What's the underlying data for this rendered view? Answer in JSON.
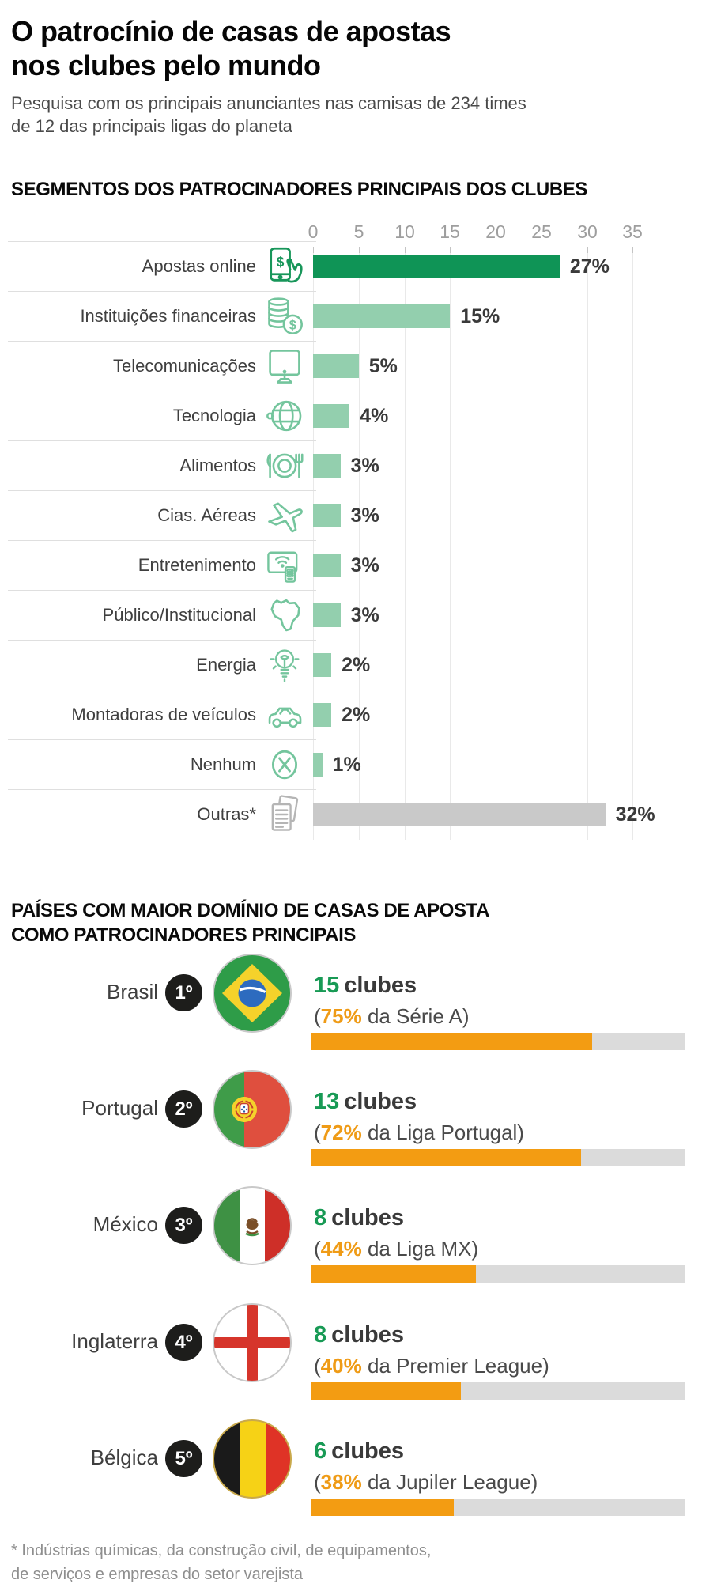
{
  "header": {
    "title_line1": "O patrocínio de casas de apostas",
    "title_line2": "nos clubes pelo mundo",
    "subtitle_line1": "Pesquisa com os principais anunciantes nas camisas de 234 times",
    "subtitle_line2": "de 12 das principais ligas do planeta"
  },
  "footnote": {
    "line1": "* Indústrias químicas, da construção civil, de equipamentos,",
    "line2": "de serviços e empresas do setor varejista"
  },
  "colors": {
    "dark_green_bar": "#0F9456",
    "light_green_bar": "#93CFAE",
    "gray_bar": "#C9C9C9",
    "icon_green": "#74C59D",
    "orange_bar": "#F39C12",
    "track_gray": "#DBDBDB",
    "clubs_number_green": "#189A55",
    "pct_orange": "#EF9B16",
    "badge_black": "#1D1D1B"
  },
  "chart_data": [
    {
      "type": "bar",
      "orientation": "horizontal",
      "title": "SEGMENTOS DOS PATROCINADORES PRINCIPAIS DOS CLUBES",
      "xlim": [
        0,
        35
      ],
      "axis_ticks": [
        "0",
        "5",
        "10",
        "15",
        "20",
        "25",
        "30",
        "35"
      ],
      "unit": "%",
      "grid": true,
      "rows": [
        {
          "label": "Apostas online",
          "icon": "smartphone-bet-icon",
          "value": 27,
          "display": "27%",
          "color": "#0F9456"
        },
        {
          "label": "Instituições financeiras",
          "icon": "coins-icon",
          "value": 15,
          "display": "15%",
          "color": "#93CFAE"
        },
        {
          "label": "Telecomunicações",
          "icon": "monitor-icon",
          "value": 5,
          "display": "5%",
          "color": "#93CFAE"
        },
        {
          "label": "Tecnologia",
          "icon": "globe-icon",
          "value": 4,
          "display": "4%",
          "color": "#93CFAE"
        },
        {
          "label": "Alimentos",
          "icon": "dining-icon",
          "value": 3,
          "display": "3%",
          "color": "#93CFAE"
        },
        {
          "label": "Cias. Aéreas",
          "icon": "airplane-icon",
          "value": 3,
          "display": "3%",
          "color": "#93CFAE"
        },
        {
          "label": "Entretenimento",
          "icon": "tv-remote-icon",
          "value": 3,
          "display": "3%",
          "color": "#93CFAE"
        },
        {
          "label": "Público/Institucional",
          "icon": "brazil-map-icon",
          "value": 3,
          "display": "3%",
          "color": "#93CFAE"
        },
        {
          "label": "Energia",
          "icon": "lightbulb-icon",
          "value": 2,
          "display": "2%",
          "color": "#93CFAE"
        },
        {
          "label": "Montadoras de veículos",
          "icon": "car-icon",
          "value": 2,
          "display": "2%",
          "color": "#93CFAE"
        },
        {
          "label": "Nenhum",
          "icon": "none-icon",
          "value": 1,
          "display": "1%",
          "color": "#93CFAE"
        },
        {
          "label": "Outras*",
          "icon": "documents-icon",
          "value": 32,
          "display": "32%",
          "color": "#C9C9C9"
        }
      ]
    },
    {
      "type": "bar",
      "orientation": "horizontal",
      "title": "PAÍSES COM MAIOR DOMÍNIO DE CASAS DE APOSTA COMO PATROCINADORES PRINCIPAIS",
      "title_line1": "PAÍSES COM MAIOR DOMÍNIO DE CASAS DE APOSTA",
      "title_line2": "COMO PATROCINADORES PRINCIPAIS",
      "bar_color": "#F39C12",
      "track_color": "#DBDBDB",
      "xlim": [
        0,
        100
      ],
      "rows": [
        {
          "rank": "1º",
          "country": "Brasil",
          "flag": "brazil",
          "clubs": "15",
          "clubs_word": "clubes",
          "paren": "(",
          "pct_display": "75%",
          "detail": " da Série A)",
          "pct": 75
        },
        {
          "rank": "2º",
          "country": "Portugal",
          "flag": "portugal",
          "clubs": "13",
          "clubs_word": "clubes",
          "paren": "(",
          "pct_display": "72%",
          "detail": " da Liga Portugal)",
          "pct": 72
        },
        {
          "rank": "3º",
          "country": "México",
          "flag": "mexico",
          "clubs": "8",
          "clubs_word": "clubes",
          "paren": "(",
          "pct_display": "44%",
          "detail": " da Liga MX)",
          "pct": 44
        },
        {
          "rank": "4º",
          "country": "Inglaterra",
          "flag": "england",
          "clubs": "8",
          "clubs_word": "clubes",
          "paren": "(",
          "pct_display": "40%",
          "detail": " da Premier League)",
          "pct": 40
        },
        {
          "rank": "5º",
          "country": "Bélgica",
          "flag": "belgium",
          "clubs": "6",
          "clubs_word": "clubes",
          "paren": "(",
          "pct_display": "38%",
          "detail": " da Jupiler League)",
          "pct": 38
        }
      ]
    }
  ]
}
